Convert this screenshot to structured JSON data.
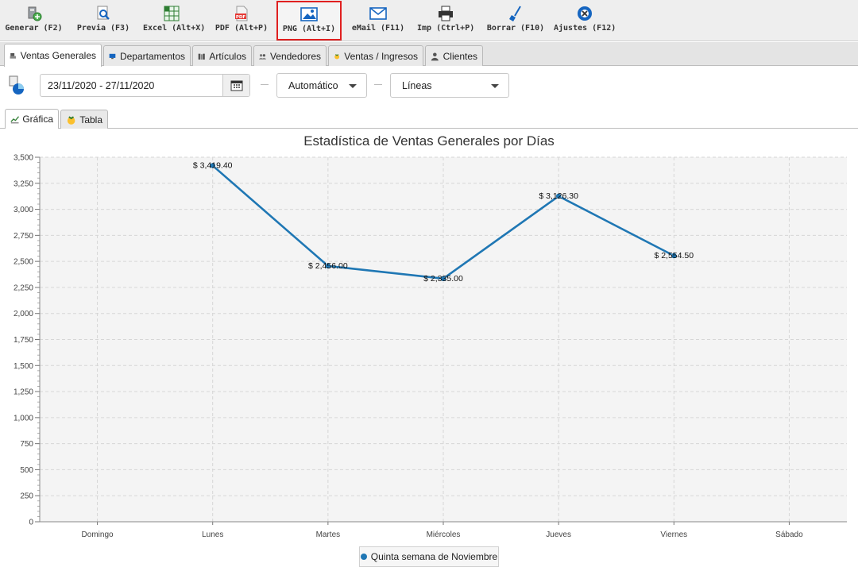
{
  "toolbar": {
    "buttons": [
      {
        "label": "Generar (F2)",
        "icon": "generate-icon"
      },
      {
        "label": "Previa (F3)",
        "icon": "preview-icon"
      },
      {
        "label": "Excel (Alt+X)",
        "icon": "excel-icon"
      },
      {
        "label": "PDF (Alt+P)",
        "icon": "pdf-icon"
      },
      {
        "label": "PNG (Alt+I)",
        "icon": "image-icon"
      },
      {
        "label": "eMail (F11)",
        "icon": "mail-icon"
      },
      {
        "label": "Imp (Ctrl+P)",
        "icon": "printer-icon"
      },
      {
        "label": "Borrar (F10)",
        "icon": "broom-icon"
      },
      {
        "label": "Ajustes (F12)",
        "icon": "settings-icon"
      }
    ],
    "selected_index": 4
  },
  "tabs": [
    {
      "label": "Ventas Generales",
      "active": true
    },
    {
      "label": "Departamentos",
      "active": false
    },
    {
      "label": "Artículos",
      "active": false
    },
    {
      "label": "Vendedores",
      "active": false
    },
    {
      "label": "Ventas / Ingresos",
      "active": false
    },
    {
      "label": "Clientes",
      "active": false
    }
  ],
  "filters": {
    "date_range": "23/11/2020 - 27/11/2020",
    "mode": "Automático",
    "chart_type": "Líneas"
  },
  "subtabs": [
    {
      "label": "Gráfica",
      "active": true
    },
    {
      "label": "Tabla",
      "active": false
    }
  ],
  "colors": {
    "series": "#1f77b4",
    "highlight": "#e02020"
  },
  "chart_data": {
    "type": "line",
    "title": "Estadística de Ventas Generales por Días",
    "categories": [
      "Domingo",
      "Lunes",
      "Martes",
      "Miércoles",
      "Jueves",
      "Viernes",
      "Sábado"
    ],
    "series": [
      {
        "name": "Quinta semana de Noviembre",
        "values": [
          null,
          3419.4,
          2456.0,
          2335.0,
          3126.3,
          2554.5,
          null
        ],
        "labels": [
          null,
          "$ 3,419.40",
          "$ 2,456.00",
          "$ 2,335.00",
          "$ 3,126.30",
          "$ 2,554.50",
          null
        ]
      }
    ],
    "ylim": [
      0,
      3500
    ],
    "yticks": [
      "0",
      "250",
      "500",
      "750",
      "1,000",
      "1,250",
      "1,500",
      "1,750",
      "2,000",
      "2,250",
      "2,500",
      "2,750",
      "3,000",
      "3,250",
      "3,500"
    ],
    "grid": true,
    "legend": "bottom-center"
  }
}
